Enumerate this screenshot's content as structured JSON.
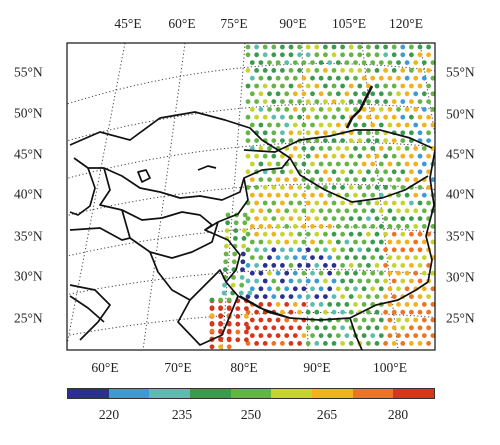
{
  "map": {
    "top_lon_labels": [
      "45°E",
      "60°E",
      "75°E",
      "90°E",
      "105°E",
      "120°E"
    ],
    "bottom_lon_labels": [
      "60°E",
      "70°E",
      "80°E",
      "90°E",
      "100°E"
    ],
    "left_lat_labels": [
      "55°N",
      "50°N",
      "45°N",
      "40°N",
      "35°N",
      "30°N",
      "25°N"
    ],
    "right_lat_labels": [
      "55°N",
      "50°N",
      "45°N",
      "40°N",
      "35°N",
      "30°N",
      "25°N"
    ]
  },
  "colorbar": {
    "ticks": [
      "220",
      "235",
      "250",
      "265",
      "280"
    ],
    "colors": [
      "#2b2f8f",
      "#3a9bd5",
      "#5bbcb0",
      "#3a9a4e",
      "#66b446",
      "#c8d42e",
      "#f2b21c",
      "#ee7422",
      "#d8351d"
    ]
  }
}
